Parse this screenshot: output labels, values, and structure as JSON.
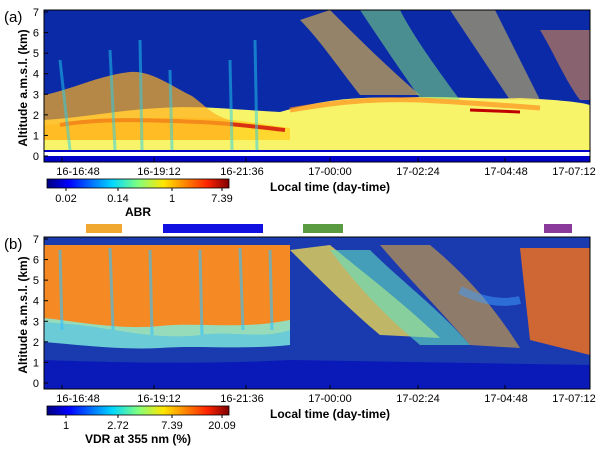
{
  "chart_data": [
    {
      "type": "heatmap",
      "panel_label": "(a)",
      "xlabel": "Local time (day-time)",
      "ylabel": "Altitude a.m.s.l. (km)",
      "x_ticks": [
        "16-16:48",
        "16-19:12",
        "16-21:36",
        "17-00:00",
        "17-02:24",
        "17-04:48",
        "17-07:12"
      ],
      "y_ticks": [
        "0",
        "1",
        "2",
        "3",
        "4",
        "5",
        "6",
        "7"
      ],
      "ylim": [
        0,
        7
      ],
      "colorbar": {
        "label": "ABR",
        "ticks": [
          "0.02",
          "0.14",
          "1",
          "7.39"
        ],
        "scale": "log"
      },
      "colormap": "jet"
    },
    {
      "type": "heatmap",
      "panel_label": "(b)",
      "xlabel": "Local time (day-time)",
      "ylabel": "Altitude a.m.s.l. (km)",
      "x_ticks": [
        "16-16:48",
        "16-19:12",
        "16-21:36",
        "17-00:00",
        "17-02:24",
        "17-04:48",
        "17-07:12"
      ],
      "y_ticks": [
        "0",
        "1",
        "2",
        "3",
        "4",
        "5",
        "6",
        "7"
      ],
      "ylim": [
        0,
        7
      ],
      "colorbar": {
        "label": "VDR at 355 nm (%)",
        "ticks": [
          "1",
          "2.72",
          "7.39",
          "20.09"
        ],
        "scale": "log"
      },
      "colormap": "jet",
      "period_bars": [
        {
          "color": "#f0a830"
        },
        {
          "color": "#1010e0"
        },
        {
          "color": "#5a9a40"
        },
        {
          "color": "#8a3a9a"
        }
      ]
    }
  ]
}
